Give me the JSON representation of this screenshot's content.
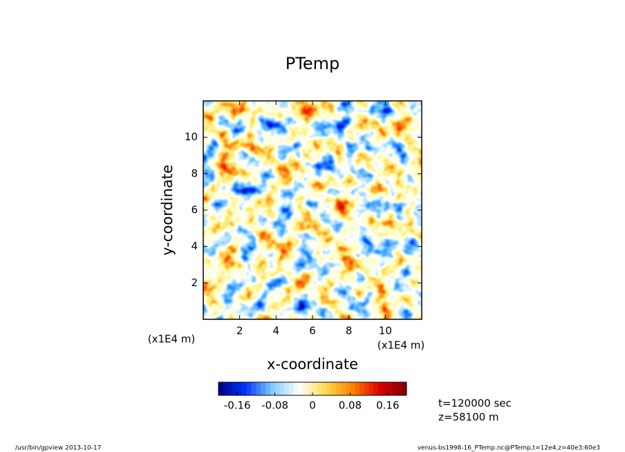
{
  "chart_data": {
    "type": "contour-fill",
    "title": "PTemp",
    "x_label": "x-coordinate",
    "y_label": "y-coordinate",
    "x_unit": "(x1E4 m)",
    "y_unit": "(x1E4 m)",
    "xlim": [
      0,
      12
    ],
    "xticks": [
      2,
      4,
      6,
      8,
      10
    ],
    "ylim": [
      0,
      12
    ],
    "yticks": [
      2,
      4,
      6,
      8,
      10
    ],
    "colorbar": {
      "lim": [
        -0.2,
        0.2
      ],
      "ticks": [
        -0.16,
        -0.08,
        0,
        0.08,
        0.16
      ]
    },
    "annotations": [
      "t=120000 sec",
      "z=58100 m"
    ],
    "footer_left": "/usr/bin/gpview  2013-10-17",
    "footer_right": "venus-bs1998-16_PTemp.nc@PTemp,t=12e4,z=40e3:60e3"
  }
}
